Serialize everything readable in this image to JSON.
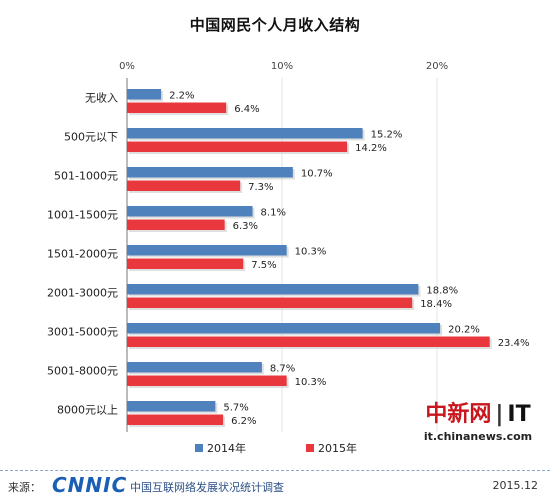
{
  "title": "中国网民个人月收入结构",
  "chart_data": {
    "type": "bar",
    "orientation": "horizontal",
    "title": "中国网民个人月收入结构",
    "categories": [
      "无收入",
      "500元以下",
      "501-1000元",
      "1001-1500元",
      "1501-2000元",
      "2001-3000元",
      "3001-5000元",
      "5001-8000元",
      "8000元以上"
    ],
    "series": [
      {
        "name": "2014年",
        "color": "#4f81bd",
        "values": [
          2.2,
          15.2,
          10.7,
          8.1,
          10.3,
          18.8,
          20.2,
          8.7,
          5.7
        ],
        "labels": [
          "2.2%",
          "15.2%",
          "10.7%",
          "8.1%",
          "10.3%",
          "18.8%",
          "20.2%",
          "8.7%",
          "5.7%"
        ]
      },
      {
        "name": "2015年",
        "color": "#e8383d",
        "values": [
          6.4,
          14.2,
          7.3,
          6.3,
          7.5,
          18.4,
          23.4,
          10.3,
          6.2
        ],
        "labels": [
          "6.4%",
          "14.2%",
          "7.3%",
          "6.3%",
          "7.5%",
          "18.4%",
          "23.4%",
          "10.3%",
          "6.2%"
        ]
      }
    ],
    "xlim": [
      0,
      25
    ],
    "xticks": [
      0,
      10,
      20
    ],
    "xtick_labels": [
      "0%",
      "10%",
      "20%"
    ],
    "grid": true,
    "legend_position": "bottom"
  },
  "watermark": {
    "logo": "中新网",
    "separator": "|",
    "brand": "IT",
    "url": "it.chinanews.com"
  },
  "footer": {
    "label": "来源：",
    "logo": "CNNIC",
    "source": "中国互联网络发展状况统计调查",
    "date": "2015.12"
  }
}
